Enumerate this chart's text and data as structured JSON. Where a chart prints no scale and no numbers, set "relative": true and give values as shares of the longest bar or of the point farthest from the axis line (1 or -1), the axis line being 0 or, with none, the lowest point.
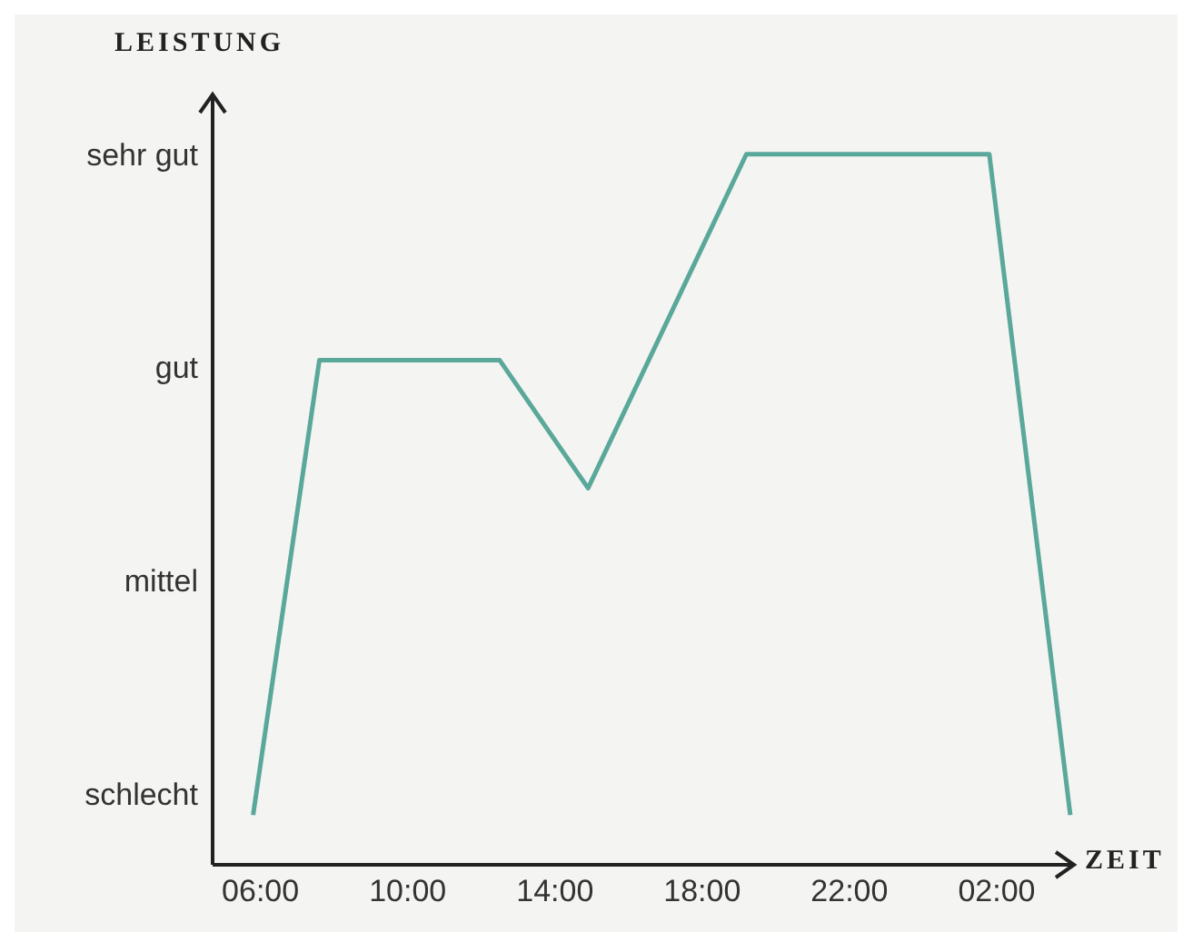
{
  "chart_data": {
    "type": "line",
    "xlabel": "ZEIT",
    "ylabel": "LEISTUNG",
    "relative": true,
    "annotations": [
      "schlecht",
      "mittel",
      "gut",
      "sehr gut"
    ],
    "x": [
      "--01-01T05:48",
      "--01-01T07:36",
      "--01-01T12:30",
      "--01-01T14:54",
      "--01-01T19:12",
      "--01-02T01:48",
      "--01-02T04:00"
    ],
    "series": [
      {
        "color": "#5aa89a",
        "values": [
          0.07,
          0.71,
          0.71,
          0.53,
          1.0,
          1.0,
          0.07
        ]
      }
    ],
    "xlim": [
      "--01-01T04:42",
      "--01-02T04:06"
    ],
    "xticks": [
      {
        "value": "--01-01T06:00",
        "label": "06:00"
      },
      {
        "value": "--01-01T10:00",
        "label": "10:00"
      },
      {
        "value": "--01-01T14:00",
        "label": "14:00"
      },
      {
        "value": "--01-01T18:00",
        "label": "18:00"
      },
      {
        "value": "--01-01T22:00",
        "label": "22:00"
      },
      {
        "value": "--01-02T02:00",
        "label": "02:00"
      }
    ],
    "grid": false,
    "legend": false,
    "marker": "none",
    "line_style": "solid"
  }
}
